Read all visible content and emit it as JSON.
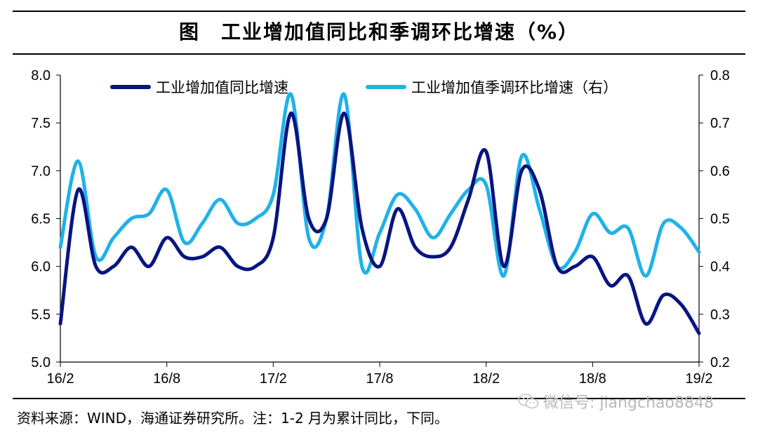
{
  "title": "图　工业增加值同比和季调环比增速（%）",
  "source": "资料来源：WIND，海通证券研究所。注：1-2 月为累计同比，下同。",
  "watermark": "微信号: jiangchao8848",
  "colors": {
    "series1": "#0a1480",
    "series2": "#1fb2e8",
    "axis": "#000000",
    "watermark": "#b9b9b9"
  },
  "chart_data": {
    "type": "line",
    "title": "工业增加值同比和季调环比增速（%）",
    "xlabel": "",
    "x": [
      "16/2",
      "16/3",
      "16/4",
      "16/5",
      "16/6",
      "16/7",
      "16/8",
      "16/9",
      "16/10",
      "16/11",
      "16/12",
      "17/1",
      "17/2",
      "17/3",
      "17/4",
      "17/5",
      "17/6",
      "17/7",
      "17/8",
      "17/9",
      "17/10",
      "17/11",
      "17/12",
      "18/1",
      "18/2",
      "18/3",
      "18/4",
      "18/5",
      "18/6",
      "18/7",
      "18/8",
      "18/9",
      "18/10",
      "18/11",
      "18/12",
      "19/1",
      "19/2"
    ],
    "xticks": [
      "16/2",
      "16/8",
      "17/2",
      "17/8",
      "18/2",
      "18/8",
      "19/2"
    ],
    "ylim": [
      5.0,
      8.0
    ],
    "yticks": [
      "5.0",
      "5.5",
      "6.0",
      "6.5",
      "7.0",
      "7.5",
      "8.0"
    ],
    "y2lim": [
      0.2,
      0.8
    ],
    "y2ticks": [
      "0.2",
      "0.3",
      "0.4",
      "0.5",
      "0.6",
      "0.7",
      "0.8"
    ],
    "grid": false,
    "legend_position": "top",
    "series": [
      {
        "name": "工业增加值同比增速",
        "axis": "left",
        "values": [
          5.4,
          6.8,
          6.0,
          6.0,
          6.2,
          6.0,
          6.3,
          6.1,
          6.1,
          6.2,
          6.0,
          6.0,
          6.3,
          7.6,
          6.5,
          6.5,
          7.6,
          6.4,
          6.0,
          6.6,
          6.2,
          6.1,
          6.2,
          6.7,
          7.2,
          6.0,
          7.0,
          6.8,
          6.0,
          6.0,
          6.1,
          5.8,
          5.9,
          5.4,
          5.7,
          5.6,
          5.3
        ]
      },
      {
        "name": "工业增加值季调环比增速（右）",
        "axis": "right",
        "values": [
          0.44,
          0.62,
          0.42,
          0.46,
          0.5,
          0.51,
          0.56,
          0.45,
          0.49,
          0.54,
          0.49,
          0.5,
          0.55,
          0.76,
          0.46,
          0.5,
          0.76,
          0.4,
          0.47,
          0.55,
          0.52,
          0.46,
          0.51,
          0.56,
          0.57,
          0.38,
          0.63,
          0.52,
          0.4,
          0.43,
          0.51,
          0.47,
          0.48,
          0.38,
          0.49,
          0.48,
          0.43
        ]
      }
    ]
  }
}
